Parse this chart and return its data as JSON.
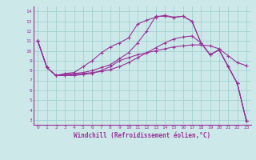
{
  "title": "",
  "xlabel": "Windchill (Refroidissement éolien,°C)",
  "xlim": [
    -0.5,
    23.5
  ],
  "ylim": [
    2.5,
    14.5
  ],
  "xticks": [
    0,
    1,
    2,
    3,
    4,
    5,
    6,
    7,
    8,
    9,
    10,
    11,
    12,
    13,
    14,
    15,
    16,
    17,
    18,
    19,
    20,
    21,
    22,
    23
  ],
  "yticks": [
    3,
    4,
    5,
    6,
    7,
    8,
    9,
    10,
    11,
    12,
    13,
    14
  ],
  "bg_color": "#cce8e8",
  "line_color": "#993399",
  "grid_color": "#99cccc",
  "lines": [
    {
      "x": [
        0,
        1,
        2,
        3,
        4,
        5,
        6,
        7,
        8,
        9,
        10,
        11,
        12,
        13,
        14,
        15,
        16,
        17,
        18,
        19,
        20,
        21,
        22,
        23
      ],
      "y": [
        11,
        8.3,
        7.5,
        7.5,
        7.5,
        7.6,
        7.7,
        8.0,
        8.4,
        9.0,
        9.3,
        9.6,
        9.8,
        10.0,
        10.2,
        10.4,
        10.5,
        10.6,
        10.6,
        10.5,
        10.2,
        9.5,
        8.8,
        8.5
      ]
    },
    {
      "x": [
        0,
        1,
        2,
        3,
        4,
        5,
        6,
        7,
        8,
        9,
        10,
        11,
        12,
        13,
        14,
        15,
        16,
        17,
        18,
        19,
        20,
        21,
        22,
        23
      ],
      "y": [
        11,
        8.3,
        7.5,
        7.7,
        7.8,
        8.4,
        9.0,
        9.8,
        10.4,
        10.8,
        11.3,
        12.7,
        13.1,
        13.4,
        13.6,
        13.4,
        13.5,
        13.0,
        10.8,
        9.6,
        10.1,
        8.4,
        6.7,
        2.9
      ]
    },
    {
      "x": [
        0,
        1,
        2,
        3,
        4,
        5,
        6,
        7,
        8,
        9,
        10,
        11,
        12,
        13,
        14,
        15,
        16,
        17,
        18,
        19,
        20,
        21,
        22,
        23
      ],
      "y": [
        11,
        8.3,
        7.5,
        7.6,
        7.7,
        7.8,
        8.0,
        8.3,
        8.6,
        9.2,
        9.8,
        10.8,
        12.0,
        13.5,
        13.5,
        13.4,
        13.5,
        13.0,
        10.8,
        9.6,
        10.1,
        8.4,
        6.7,
        2.9
      ]
    },
    {
      "x": [
        0,
        1,
        2,
        3,
        4,
        5,
        6,
        7,
        8,
        9,
        10,
        11,
        12,
        13,
        14,
        15,
        16,
        17,
        18,
        19,
        20,
        21,
        22,
        23
      ],
      "y": [
        11,
        8.3,
        7.5,
        7.5,
        7.6,
        7.7,
        7.8,
        7.9,
        8.1,
        8.4,
        8.8,
        9.3,
        9.8,
        10.3,
        10.8,
        11.2,
        11.4,
        11.5,
        10.8,
        9.6,
        10.1,
        8.4,
        6.7,
        2.9
      ]
    }
  ]
}
